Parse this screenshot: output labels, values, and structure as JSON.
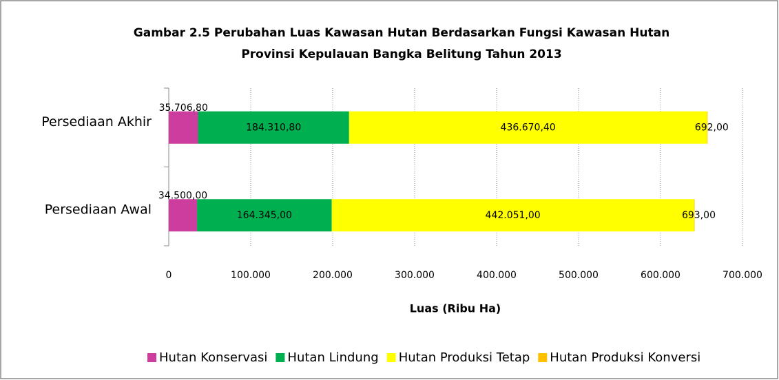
{
  "chart_data": {
    "type": "stacked-barh",
    "title": "Gambar 2.5 Perubahan Luas Kawasan Hutan Berdasarkan Fungsi Kawasan Hutan",
    "subtitle": "Provinsi Kepulauan Bangka Belitung Tahun 2013",
    "x_label": "Luas (Ribu Ha)",
    "categories": [
      "Persediaan Akhir",
      "Persediaan Awal"
    ],
    "series": [
      {
        "name": "Hutan Konservasi",
        "color": "#cc3d9e",
        "values": [
          35706.8,
          34500
        ],
        "value_labels": [
          "35.706,80",
          "34.500,00"
        ]
      },
      {
        "name": "Hutan Lindung",
        "color": "#00b050",
        "values": [
          184310.8,
          164345
        ],
        "value_labels": [
          "184.310,80",
          "164.345,00"
        ]
      },
      {
        "name": "Hutan Produksi Tetap",
        "color": "#ffff00",
        "values": [
          436670.4,
          442051
        ],
        "value_labels": [
          "436.670,40",
          "442.051,00"
        ]
      },
      {
        "name": "Hutan Produksi Konversi",
        "color": "#ffc000",
        "values": [
          692,
          693
        ],
        "value_labels": [
          "692,00",
          "693,00"
        ]
      }
    ],
    "xlim": [
      0,
      700000
    ],
    "xticks": [
      0,
      {
        "value": 100000,
        "label": "100.000"
      },
      {
        "value": 200000,
        "label": "200.000"
      },
      {
        "value": 300000,
        "label": "300.000"
      },
      {
        "value": 400000,
        "label": "400.000"
      },
      {
        "value": 500000,
        "label": "500.000"
      },
      {
        "value": 600000,
        "label": "600.000"
      },
      {
        "value": 700000,
        "label": "700.000"
      }
    ],
    "grid": true,
    "legend": "bottom"
  }
}
